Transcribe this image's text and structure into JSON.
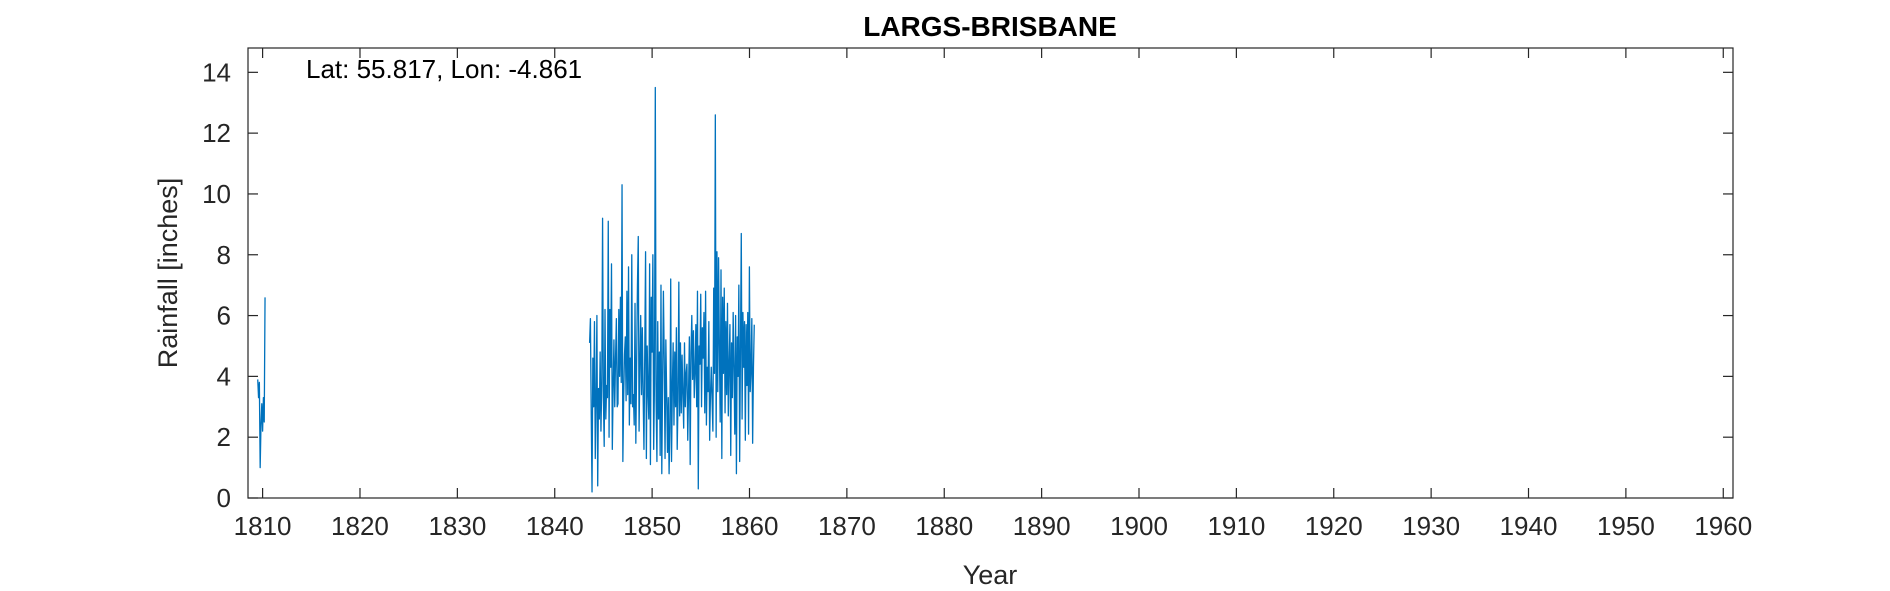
{
  "chart_data": {
    "type": "line",
    "title": "LARGS-BRISBANE",
    "xlabel": "Year",
    "ylabel": "Rainfall [inches]",
    "annotation": "Lat: 55.817, Lon: -4.861",
    "xlim": [
      1808.5,
      1961
    ],
    "ylim": [
      0,
      14.8
    ],
    "xticks": [
      1810,
      1820,
      1830,
      1840,
      1850,
      1860,
      1870,
      1880,
      1890,
      1900,
      1910,
      1920,
      1930,
      1940,
      1950,
      1960
    ],
    "yticks": [
      0,
      2,
      4,
      6,
      8,
      10,
      12,
      14
    ],
    "grid": false,
    "line_color": "#0072BD",
    "series": [
      {
        "segments": [
          {
            "x_start": 1809.5,
            "x_step": 0.0833,
            "values": [
              3.9,
              3.3,
              3.8,
              1.0,
              2.4,
              3.1,
              2.2,
              3.3,
              2.5,
              6.6
            ]
          },
          {
            "x_start": 1843.58,
            "x_step": 0.0833,
            "values": [
              5.1,
              5.9,
              2.8,
              0.2,
              4.6,
              3.0,
              5.8,
              1.3,
              3.2,
              6.0,
              0.4,
              3.6,
              2.6,
              4.8,
              2.2,
              3.8,
              9.2,
              3.3,
              1.7,
              6.2,
              2.6,
              3.7,
              3.3,
              9.1,
              2.0,
              6.2,
              4.3,
              7.7,
              1.6,
              3.6,
              5.2,
              3.0,
              4.6,
              5.9,
              3.0,
              3.1,
              6.2,
              4.0,
              6.6,
              3.8,
              10.3,
              1.2,
              3.3,
              4.7,
              5.3,
              3.2,
              6.8,
              3.4,
              7.6,
              2.4,
              4.6,
              3.1,
              8.0,
              3.0,
              3.4,
              2.4,
              6.4,
              1.8,
              4.5,
              7.0,
              8.6,
              2.2,
              4.4,
              6.0,
              3.4,
              5.6,
              3.4,
              1.6,
              4.8,
              8.1,
              1.3,
              5.0,
              3.5,
              2.6,
              7.7,
              1.1,
              6.6,
              4.8,
              8.0,
              1.6,
              3.8,
              13.5,
              3.2,
              1.2,
              5.8,
              2.6,
              4.8,
              1.4,
              7.0,
              0.8,
              3.9,
              6.8,
              4.6,
              1.3,
              5.2,
              3.4,
              1.5,
              3.3,
              0.8,
              2.3,
              7.2,
              1.2,
              3.6,
              5.1,
              2.4,
              4.8,
              3.0,
              5.6,
              1.6,
              3.2,
              7.1,
              2.7,
              5.1,
              2.8,
              4.7,
              3.4,
              2.3,
              5.1,
              3.0,
              4.1,
              4.4,
              1.9,
              3.5,
              5.3,
              1.1,
              4.8,
              6.0,
              3.9,
              5.5,
              3.3,
              4.1,
              5.7,
              3.0,
              6.8,
              0.3,
              5.0,
              4.4,
              6.7,
              3.0,
              5.6,
              4.6,
              6.1,
              2.8,
              6.8,
              2.4,
              4.3,
              3.5,
              5.8,
              1.9,
              3.4,
              4.3,
              3.2,
              2.2,
              6.9,
              4.1,
              12.6,
              2.0,
              8.1,
              3.5,
              7.9,
              5.0,
              2.5,
              7.5,
              1.3,
              6.6,
              4.1,
              6.9,
              2.8,
              5.8,
              3.4,
              6.4,
              2.7,
              4.4,
              5.7,
              1.4,
              5.1,
              3.3,
              6.1,
              4.3,
              2.1,
              6.0,
              0.8,
              5.3,
              4.0,
              7.0,
              1.2,
              4.9,
              8.7,
              2.6,
              6.1,
              4.3,
              5.8,
              1.9,
              5.7,
              3.7,
              6.1,
              2.1,
              7.6,
              3.5,
              4.2,
              5.9,
              1.8,
              4.3,
              5.7
            ]
          }
        ]
      }
    ]
  }
}
